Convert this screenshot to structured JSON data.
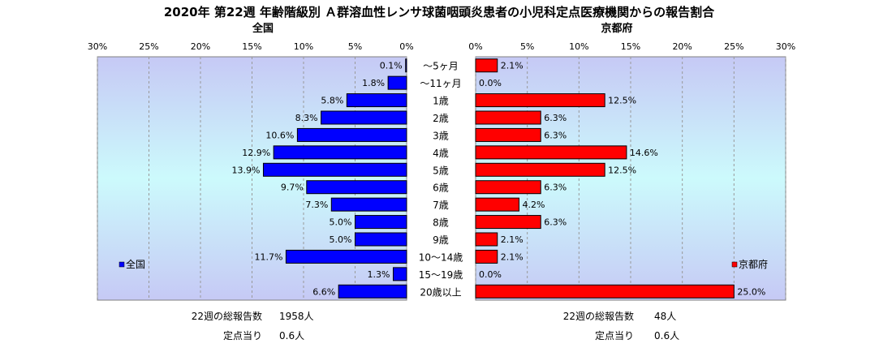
{
  "title": "2020年 第22週 年齢階級別 Ａ群溶血性レンサ球菌咽頭炎患者の小児科定点医療機関からの報告割合",
  "chart_data": {
    "type": "bar",
    "orientation": "horizontal",
    "categories": [
      "～5ヶ月",
      "～11ヶ月",
      "1歳",
      "2歳",
      "3歳",
      "4歳",
      "5歳",
      "6歳",
      "7歳",
      "8歳",
      "9歳",
      "10～14歳",
      "15～19歳",
      "20歳以上"
    ],
    "panels": [
      {
        "panel_title": "全国",
        "legend": "全国",
        "color": "#0000ff",
        "direction": "left",
        "xlim": [
          0,
          30
        ],
        "ticks": [
          "30%",
          "25%",
          "20%",
          "15%",
          "10%",
          "5%",
          "0%"
        ],
        "tick_values": [
          30,
          25,
          20,
          15,
          10,
          5,
          0
        ],
        "values": [
          0.1,
          1.8,
          5.8,
          8.3,
          10.6,
          12.9,
          13.9,
          9.7,
          7.3,
          5.0,
          5.0,
          11.7,
          1.3,
          6.6
        ],
        "labels": [
          "0.1%",
          "1.8%",
          "5.8%",
          "8.3%",
          "10.6%",
          "12.9%",
          "13.9%",
          "9.7%",
          "7.3%",
          "5.0%",
          "5.0%",
          "11.7%",
          "1.3%",
          "6.6%"
        ],
        "total_label": "22週の総報告数",
        "total_value": "1958人",
        "per_site_label": "定点当り",
        "per_site_value": "0.6人"
      },
      {
        "panel_title": "京都府",
        "legend": "京都府",
        "color": "#ff0000",
        "direction": "right",
        "xlim": [
          0,
          30
        ],
        "ticks": [
          "0%",
          "5%",
          "10%",
          "15%",
          "20%",
          "25%",
          "30%"
        ],
        "tick_values": [
          0,
          5,
          10,
          15,
          20,
          25,
          30
        ],
        "values": [
          2.1,
          0.0,
          12.5,
          6.3,
          6.3,
          14.6,
          12.5,
          6.3,
          4.2,
          6.3,
          2.1,
          2.1,
          0.0,
          25.0
        ],
        "labels": [
          "2.1%",
          "0.0%",
          "12.5%",
          "6.3%",
          "6.3%",
          "14.6%",
          "12.5%",
          "6.3%",
          "4.2%",
          "6.3%",
          "2.1%",
          "2.1%",
          "0.0%",
          "25.0%"
        ],
        "total_label": "22週の総報告数",
        "total_value": "48人",
        "per_site_label": "定点当り",
        "per_site_value": "0.6人"
      }
    ]
  }
}
